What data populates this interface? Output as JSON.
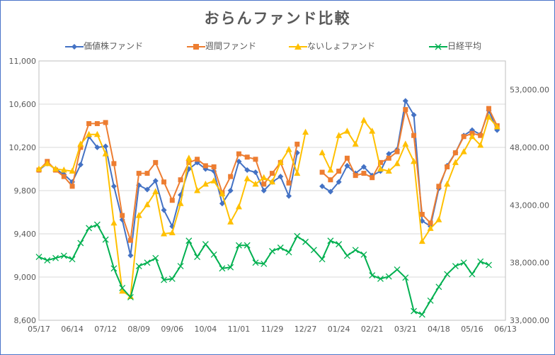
{
  "chart_data": {
    "type": "line",
    "title": "おらんファンド比較",
    "categories": [
      "05/17",
      "05/24",
      "05/31",
      "06/07",
      "06/14",
      "06/21",
      "06/28",
      "07/05",
      "07/12",
      "07/19",
      "07/26",
      "08/02",
      "08/09",
      "08/16",
      "08/23",
      "08/30",
      "09/06",
      "09/13",
      "09/20",
      "09/27",
      "10/04",
      "10/11",
      "10/18",
      "10/25",
      "11/01",
      "11/08",
      "11/15",
      "11/22",
      "11/29",
      "12/06",
      "12/13",
      "12/20",
      "12/27",
      "01/03",
      "01/10",
      "01/17",
      "01/24",
      "01/31",
      "02/07",
      "02/14",
      "02/21",
      "02/28",
      "03/07",
      "03/14",
      "03/21",
      "03/28",
      "04/04",
      "04/11",
      "04/18",
      "04/25",
      "05/02",
      "05/09",
      "05/16",
      "05/23",
      "05/30",
      "06/06",
      "06/13"
    ],
    "x_tick_labels": [
      "05/17",
      "06/14",
      "07/12",
      "08/09",
      "09/06",
      "10/04",
      "11/01",
      "11/29",
      "12/27",
      "01/24",
      "02/21",
      "03/21",
      "04/18",
      "05/16",
      "06/13"
    ],
    "y_left": {
      "ylim": [
        8600,
        11000
      ],
      "ticks": [
        "8,600",
        "9,000",
        "9,400",
        "9,800",
        "10,200",
        "10,600",
        "11,000"
      ]
    },
    "y_right": {
      "ylim": [
        33000,
        55500
      ],
      "ticks": [
        "33,000.00",
        "38,000.00",
        "43,000.00",
        "48,000.00",
        "53,000.00"
      ]
    },
    "grid": "horizontal",
    "legend": "top",
    "series": [
      {
        "name": "価値株ファンド",
        "color": "#4472c4",
        "marker": "diamond",
        "axis": "left",
        "points": [
          [
            0,
            9990
          ],
          [
            1,
            10050
          ],
          [
            2,
            10000
          ],
          [
            3,
            9950
          ],
          [
            4,
            9880
          ],
          [
            5,
            10040
          ],
          [
            6,
            10300
          ],
          [
            7,
            10200
          ],
          [
            8,
            10210
          ],
          [
            9,
            9840
          ],
          [
            10,
            9530
          ],
          [
            11,
            9200
          ],
          [
            12,
            9850
          ],
          [
            13,
            9810
          ],
          [
            14,
            9890
          ],
          [
            15,
            9620
          ],
          [
            16,
            9470
          ],
          [
            17,
            9760
          ],
          [
            18,
            10000
          ],
          [
            19,
            10060
          ],
          [
            20,
            10000
          ],
          [
            21,
            9980
          ],
          [
            22,
            9680
          ],
          [
            23,
            9800
          ],
          [
            24,
            10070
          ],
          [
            25,
            9990
          ],
          [
            26,
            9970
          ],
          [
            27,
            9800
          ],
          [
            28,
            9880
          ],
          [
            29,
            9930
          ],
          [
            30,
            9750
          ],
          [
            31,
            10150
          ],
          [
            34,
            9840
          ],
          [
            35,
            9790
          ],
          [
            36,
            9880
          ],
          [
            37,
            10030
          ],
          [
            38,
            9960
          ],
          [
            39,
            10020
          ],
          [
            40,
            9940
          ],
          [
            41,
            9980
          ],
          [
            42,
            10140
          ],
          [
            43,
            10180
          ],
          [
            44,
            10630
          ],
          [
            45,
            10500
          ],
          [
            46,
            9520
          ],
          [
            47,
            9470
          ],
          [
            48,
            9820
          ],
          [
            49,
            10030
          ],
          [
            50,
            10150
          ],
          [
            51,
            10310
          ],
          [
            52,
            10360
          ],
          [
            53,
            10320
          ],
          [
            54,
            10540
          ],
          [
            55,
            10360
          ]
        ]
      },
      {
        "name": "週間ファンド",
        "color": "#ed7d31",
        "marker": "square",
        "axis": "left",
        "points": [
          [
            0,
            9990
          ],
          [
            1,
            10070
          ],
          [
            2,
            9990
          ],
          [
            3,
            9930
          ],
          [
            4,
            9840
          ],
          [
            5,
            10200
          ],
          [
            6,
            10420
          ],
          [
            7,
            10420
          ],
          [
            8,
            10430
          ],
          [
            9,
            10050
          ],
          [
            10,
            9570
          ],
          [
            11,
            9340
          ],
          [
            12,
            9960
          ],
          [
            13,
            9960
          ],
          [
            14,
            10060
          ],
          [
            15,
            9880
          ],
          [
            16,
            9710
          ],
          [
            17,
            9900
          ],
          [
            18,
            10060
          ],
          [
            19,
            10090
          ],
          [
            20,
            10030
          ],
          [
            21,
            10020
          ],
          [
            22,
            9780
          ],
          [
            23,
            9930
          ],
          [
            24,
            10140
          ],
          [
            25,
            10110
          ],
          [
            26,
            10090
          ],
          [
            27,
            9860
          ],
          [
            28,
            9960
          ],
          [
            29,
            10060
          ],
          [
            30,
            9870
          ],
          [
            31,
            10230
          ],
          [
            34,
            9970
          ],
          [
            35,
            9900
          ],
          [
            36,
            9980
          ],
          [
            37,
            10100
          ],
          [
            38,
            9940
          ],
          [
            39,
            9960
          ],
          [
            40,
            9920
          ],
          [
            41,
            10060
          ],
          [
            42,
            10100
          ],
          [
            43,
            10160
          ],
          [
            44,
            10550
          ],
          [
            45,
            10310
          ],
          [
            46,
            9580
          ],
          [
            47,
            9500
          ],
          [
            48,
            9840
          ],
          [
            49,
            10020
          ],
          [
            50,
            10150
          ],
          [
            51,
            10300
          ],
          [
            52,
            10330
          ],
          [
            53,
            10310
          ],
          [
            54,
            10560
          ],
          [
            55,
            10400
          ]
        ]
      },
      {
        "name": "ないしょファンド",
        "color": "#ffc000",
        "marker": "triangle",
        "axis": "left",
        "points": [
          [
            0,
            10000
          ],
          [
            1,
            10050
          ],
          [
            2,
            10000
          ],
          [
            3,
            9990
          ],
          [
            4,
            9980
          ],
          [
            5,
            10230
          ],
          [
            6,
            10320
          ],
          [
            7,
            10320
          ],
          [
            8,
            10140
          ],
          [
            9,
            9500
          ],
          [
            10,
            8870
          ],
          [
            11,
            8820
          ],
          [
            12,
            9570
          ],
          [
            13,
            9670
          ],
          [
            14,
            9790
          ],
          [
            15,
            9400
          ],
          [
            16,
            9410
          ],
          [
            17,
            9680
          ],
          [
            18,
            10100
          ],
          [
            19,
            9800
          ],
          [
            20,
            9860
          ],
          [
            21,
            9890
          ],
          [
            22,
            9770
          ],
          [
            23,
            9510
          ],
          [
            24,
            9650
          ],
          [
            25,
            9910
          ],
          [
            26,
            9860
          ],
          [
            27,
            9920
          ],
          [
            28,
            9880
          ],
          [
            29,
            10060
          ],
          [
            30,
            10180
          ],
          [
            31,
            9960
          ],
          [
            32,
            10340
          ],
          [
            34,
            10150
          ],
          [
            35,
            9990
          ],
          [
            36,
            10310
          ],
          [
            37,
            10350
          ],
          [
            38,
            10230
          ],
          [
            39,
            10450
          ],
          [
            40,
            10350
          ],
          [
            41,
            10000
          ],
          [
            42,
            9980
          ],
          [
            43,
            10050
          ],
          [
            44,
            10230
          ],
          [
            45,
            10070
          ],
          [
            46,
            9330
          ],
          [
            47,
            9450
          ],
          [
            48,
            9530
          ],
          [
            49,
            9860
          ],
          [
            50,
            10060
          ],
          [
            51,
            10160
          ],
          [
            52,
            10300
          ],
          [
            53,
            10220
          ],
          [
            54,
            10480
          ],
          [
            55,
            10390
          ]
        ]
      },
      {
        "name": "日経平均",
        "color": "#00b050",
        "marker": "x",
        "axis": "right",
        "points": [
          [
            0,
            38500
          ],
          [
            1,
            38200
          ],
          [
            2,
            38400
          ],
          [
            3,
            38600
          ],
          [
            4,
            38300
          ],
          [
            5,
            39700
          ],
          [
            6,
            41000
          ],
          [
            7,
            41300
          ],
          [
            8,
            40000
          ],
          [
            9,
            37500
          ],
          [
            10,
            35800
          ],
          [
            11,
            35000
          ],
          [
            12,
            37700
          ],
          [
            13,
            38000
          ],
          [
            14,
            38400
          ],
          [
            15,
            36500
          ],
          [
            16,
            36600
          ],
          [
            17,
            37700
          ],
          [
            18,
            39900
          ],
          [
            19,
            38500
          ],
          [
            20,
            39600
          ],
          [
            21,
            38700
          ],
          [
            22,
            37500
          ],
          [
            23,
            37600
          ],
          [
            24,
            39500
          ],
          [
            25,
            39500
          ],
          [
            26,
            38000
          ],
          [
            27,
            37900
          ],
          [
            28,
            39000
          ],
          [
            29,
            39300
          ],
          [
            30,
            38900
          ],
          [
            31,
            40300
          ],
          [
            32,
            39800
          ],
          [
            33,
            39100
          ],
          [
            34,
            38300
          ],
          [
            35,
            39900
          ],
          [
            36,
            39600
          ],
          [
            37,
            38600
          ],
          [
            38,
            39100
          ],
          [
            39,
            38700
          ],
          [
            40,
            36900
          ],
          [
            41,
            36600
          ],
          [
            42,
            36800
          ],
          [
            43,
            37400
          ],
          [
            44,
            36700
          ],
          [
            45,
            33800
          ],
          [
            46,
            33500
          ],
          [
            47,
            34700
          ],
          [
            48,
            35900
          ],
          [
            49,
            37000
          ],
          [
            50,
            37700
          ],
          [
            51,
            38000
          ],
          [
            52,
            37000
          ],
          [
            53,
            38100
          ],
          [
            54,
            37800
          ]
        ]
      }
    ]
  }
}
